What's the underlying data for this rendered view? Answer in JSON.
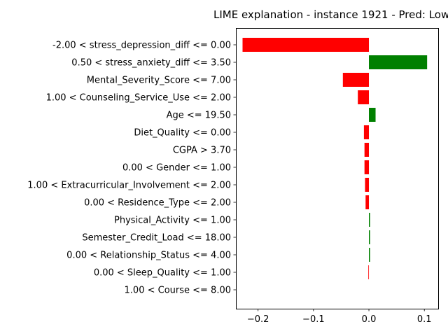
{
  "chart_data": {
    "type": "bar",
    "orientation": "horizontal",
    "title": "LIME explanation - instance 1921 - Pred: Low",
    "xlabel": "",
    "ylabel": "",
    "xlim": [
      -0.24,
      0.125
    ],
    "xticks": [
      -0.2,
      -0.1,
      0.0,
      0.1
    ],
    "xtick_labels": [
      "−0.2",
      "−0.1",
      "0.0",
      "0.1"
    ],
    "grid": false,
    "colors": {
      "positive": "#008000",
      "negative": "#ff0000"
    },
    "categories": [
      "-2.00 < stress_depression_diff <= 0.00",
      "0.50 < stress_anxiety_diff <= 3.50",
      "Mental_Severity_Score <= 7.00",
      "1.00 < Counseling_Service_Use <= 2.00",
      "Age <= 19.50",
      "Diet_Quality <= 0.00",
      "CGPA > 3.70",
      "0.00 < Gender <= 1.00",
      "1.00 < Extracurricular_Involvement <= 2.00",
      "0.00 < Residence_Type <= 2.00",
      "Physical_Activity <= 1.00",
      "Semester_Credit_Load <= 18.00",
      "0.00 < Relationship_Status <= 4.00",
      "0.00 < Sleep_Quality <= 1.00",
      "1.00 < Course <= 8.00"
    ],
    "values": [
      -0.228,
      0.105,
      -0.047,
      -0.02,
      0.012,
      -0.009,
      -0.008,
      -0.008,
      -0.007,
      -0.006,
      0.002,
      0.002,
      0.002,
      -0.001,
      0.0
    ]
  }
}
